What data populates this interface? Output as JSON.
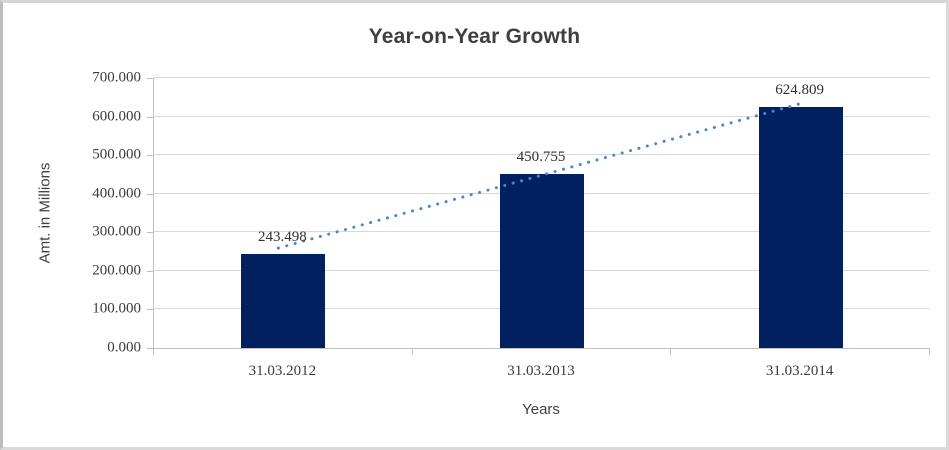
{
  "chart_data": {
    "type": "bar",
    "title": "Year-on-Year Growth",
    "xlabel": "Years",
    "ylabel": "Amt. in Millions",
    "categories": [
      "31.03.2012",
      "31.03.2013",
      "31.03.2014"
    ],
    "values": [
      243.498,
      450.755,
      624.809
    ],
    "data_labels": [
      "243.498",
      "450.755",
      "624.809"
    ],
    "ylim": [
      0,
      700
    ],
    "ytick_labels": [
      "0.000",
      "100.000",
      "200.000",
      "300.000",
      "400.000",
      "500.000",
      "600.000",
      "700.000"
    ],
    "grid": true,
    "legend": "none",
    "bar_color": "#002060",
    "trendline": {
      "type": "linear",
      "style": "dotted",
      "color": "#4a86c8"
    },
    "gridline_color": "#d9d9d9",
    "axis_color": "#bfbfbf",
    "title_color": "#3f3f3f",
    "label_color": "#3b3b3b"
  }
}
